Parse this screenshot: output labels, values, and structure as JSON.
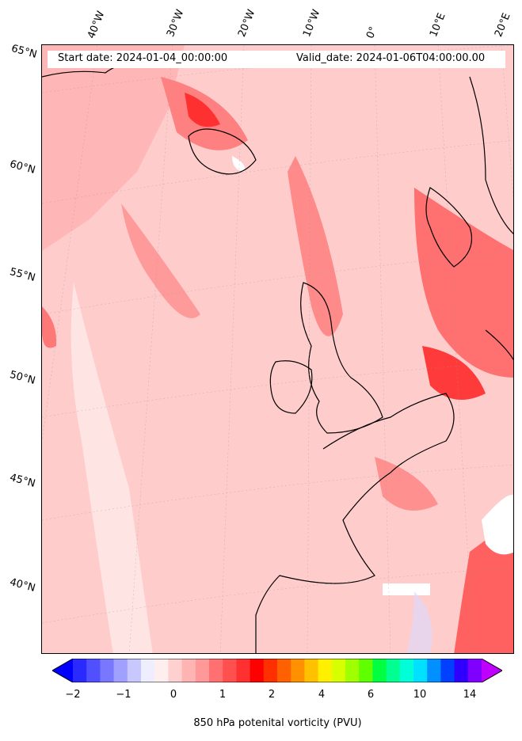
{
  "map": {
    "start_date": "Start date: 2024-01-04_00:00:00",
    "valid_date": "Valid_date: 2024-01-06T04:00:00.00",
    "lon_labels": [
      "40°W",
      "30°W",
      "20°W",
      "10°W",
      "0°",
      "10°E",
      "20°E"
    ],
    "lat_labels": [
      "65°N",
      "60°N",
      "55°N",
      "50°N",
      "45°N",
      "40°N"
    ],
    "field": "850 hPa potential vorticity",
    "projection": "Lambert conformal",
    "region": "North Atlantic and Western Europe"
  },
  "colorbar": {
    "label": "850 hPa potenital vorticity (PVU)",
    "ticks": [
      "−2",
      "−1",
      "0",
      "1",
      "2",
      "4",
      "6",
      "10",
      "14"
    ],
    "colors": [
      "#0000ff",
      "#2a2aff",
      "#5050ff",
      "#7878ff",
      "#a0a0ff",
      "#c8c8ff",
      "#eeeeff",
      "#ffeeee",
      "#ffd0d0",
      "#ffb4b4",
      "#ff9898",
      "#ff7070",
      "#ff5050",
      "#ff3030",
      "#ff0000",
      "#ff3000",
      "#ff6000",
      "#ff9000",
      "#ffc000",
      "#fff000",
      "#d8ff00",
      "#a0ff00",
      "#60ff00",
      "#00ff40",
      "#00ff90",
      "#00ffd8",
      "#00e0ff",
      "#0090ff",
      "#0040ff",
      "#3000ff",
      "#8000ff",
      "#c000ff"
    ],
    "extend": "both"
  }
}
